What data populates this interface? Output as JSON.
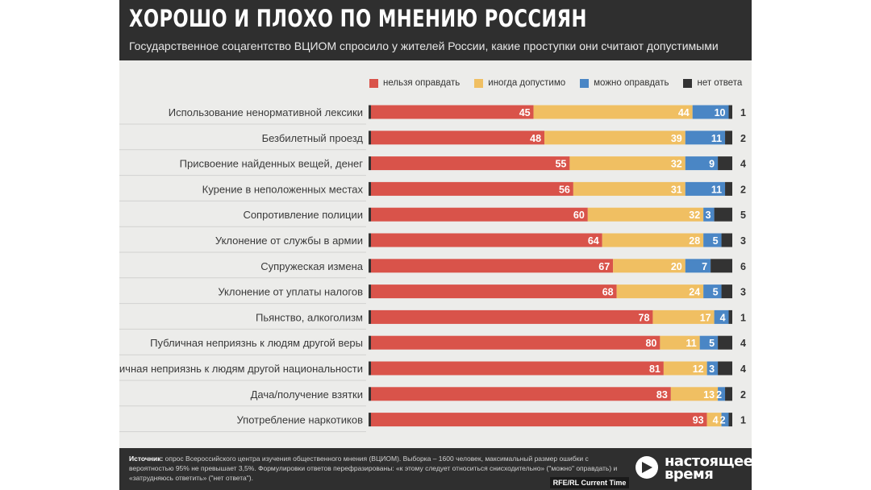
{
  "header": {
    "title": "ХОРОШО И ПЛОХО ПО МНЕНИЮ РОССИЯН",
    "subtitle": "Государственное соцагентство ВЦИОМ спросило у жителей России, какие проступки они считают допустимыми"
  },
  "footer": {
    "source_label": "Источник:",
    "source_text": "опрос Всероссийского центра изучения общественного мнения (ВЦИОМ). Выборка – 1600 человек, максимальный размер ошибки с вероятностью 95% не превышает 3,5%. Формулировки ответов перефразированы: «к этому следует относиться снисходительно» (\"можно\" оправдать) и «затрудняюсь ответить» (\"нет ответа\").",
    "logo_text": "настоящее время",
    "credit": "RFE/RL Current Time"
  },
  "chart_data": {
    "type": "bar",
    "orientation": "horizontal",
    "stacked": true,
    "categories": [
      "Использование ненормативной лексики",
      "Безбилетный проезд",
      "Присвоение найденных вещей, денег",
      "Курение в неположенных местах",
      "Сопротивление полиции",
      "Уклонение от службы в армии",
      "Супружеская измена",
      "Уклонение от уплаты налогов",
      "Пьянство, алкоголизм",
      "Публичная неприязнь к людям другой веры",
      "Публичная неприязнь к людям другой национальности",
      "Дача/получение взятки",
      "Употребление наркотиков"
    ],
    "series": [
      {
        "name": "нельзя оправдать",
        "color": "#d9534a",
        "values": [
          45,
          48,
          55,
          56,
          60,
          64,
          67,
          68,
          78,
          80,
          81,
          83,
          93
        ]
      },
      {
        "name": "иногда допустимо",
        "color": "#f0bf62",
        "values": [
          44,
          39,
          32,
          31,
          32,
          28,
          20,
          24,
          17,
          11,
          12,
          13,
          4
        ]
      },
      {
        "name": "можно оправдать",
        "color": "#4a86c5",
        "values": [
          10,
          11,
          9,
          11,
          3,
          5,
          7,
          5,
          4,
          5,
          3,
          2,
          2
        ]
      },
      {
        "name": "нет ответа",
        "color": "#333333",
        "values": [
          1,
          2,
          4,
          2,
          5,
          3,
          6,
          3,
          1,
          4,
          4,
          2,
          1
        ]
      }
    ],
    "xlim": [
      0,
      100
    ],
    "legend_position": "top"
  }
}
